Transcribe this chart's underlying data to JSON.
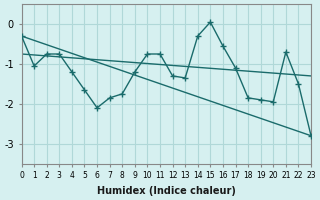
{
  "xlabel": "Humidex (Indice chaleur)",
  "xlim": [
    0,
    23
  ],
  "ylim": [
    -3.5,
    0.5
  ],
  "yticks": [
    0,
    -1,
    -2,
    -3
  ],
  "xticks": [
    0,
    1,
    2,
    3,
    4,
    5,
    6,
    7,
    8,
    9,
    10,
    11,
    12,
    13,
    14,
    15,
    16,
    17,
    18,
    19,
    20,
    21,
    22,
    23
  ],
  "bg_color": "#d6f0f0",
  "grid_color": "#b0d8d8",
  "line_color": "#1a6b6b",
  "line1_x": [
    0,
    1,
    2,
    3,
    4,
    5,
    6,
    7,
    8,
    9,
    10,
    11,
    12,
    13,
    14,
    15,
    16,
    17,
    18,
    19,
    20,
    21,
    22,
    23
  ],
  "line1_y": [
    -0.3,
    -1.05,
    -0.75,
    -0.75,
    -1.2,
    -1.65,
    -2.1,
    -1.85,
    -1.75,
    -1.2,
    -0.75,
    -0.75,
    -1.3,
    -1.35,
    -0.3,
    0.05,
    -0.55,
    -1.1,
    -1.85,
    -1.9,
    -1.95,
    -0.7,
    -1.5,
    -2.8
  ],
  "line2_x": [
    0,
    23
  ],
  "line2_y": [
    -0.3,
    -2.8
  ],
  "line3_x": [
    0,
    23
  ],
  "line3_y": [
    -0.75,
    -1.3
  ]
}
